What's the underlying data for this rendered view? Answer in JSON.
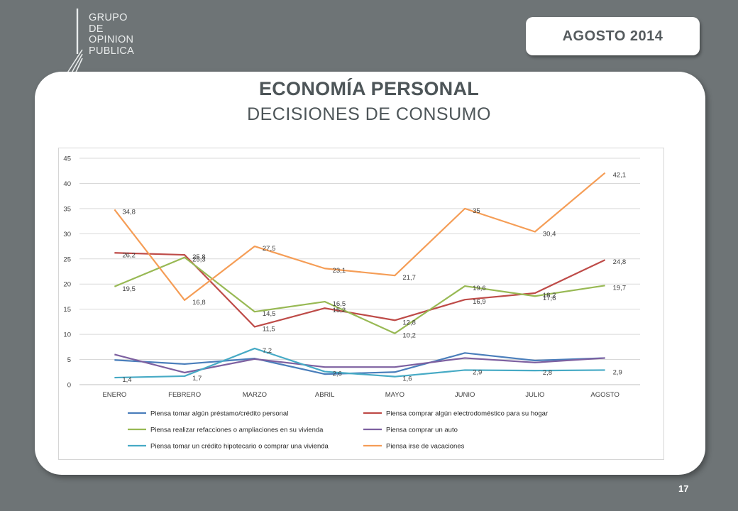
{
  "logo": {
    "lines": [
      "GRUPO",
      "DE",
      "OPINION",
      "PUBLICA"
    ]
  },
  "header": {
    "date_badge": "AGOSTO 2014"
  },
  "slide": {
    "title": "ECONOMÍA PERSONAL",
    "subtitle": "DECISIONES DE CONSUMO",
    "page_number": "17"
  },
  "chart_data": {
    "type": "line",
    "categories": [
      "ENERO",
      "FEBRERO",
      "MARZO",
      "ABRIL",
      "MAYO",
      "JUNIO",
      "JULIO",
      "AGOSTO"
    ],
    "ylim": [
      0,
      45
    ],
    "yticks": [
      0,
      5,
      10,
      15,
      20,
      25,
      30,
      35,
      40,
      45
    ],
    "grid": true,
    "legend_position": "bottom",
    "series": [
      {
        "name": "Piensa tomar algún préstamo/crédito personal",
        "color": "#4a7ebb",
        "values": [
          4.9,
          4.1,
          5.2,
          2.1,
          2.5,
          6.3,
          4.8,
          5.3
        ],
        "labels": [
          null,
          null,
          null,
          null,
          null,
          null,
          null,
          null
        ]
      },
      {
        "name": "Piensa comprar algún electrodoméstico para su hogar",
        "color": "#be4b48",
        "values": [
          26.2,
          25.8,
          11.5,
          15.2,
          12.8,
          16.9,
          18.2,
          24.8
        ],
        "labels": [
          "26,2",
          "25,8",
          "11,5",
          "15,2",
          "12,8",
          "16,9",
          "18,2",
          "24,8"
        ]
      },
      {
        "name": "Piensa realizar refacciones o ampliaciones en su vivienda",
        "color": "#98b954",
        "values": [
          19.5,
          25.3,
          14.5,
          16.5,
          10.2,
          19.6,
          17.6,
          19.7
        ],
        "labels": [
          "19,5",
          "25,3",
          "14,5",
          "16,5",
          "10,2",
          "19,6",
          "17,6",
          "19,7"
        ]
      },
      {
        "name": "Piensa comprar un auto",
        "color": "#7d60a0",
        "values": [
          6.0,
          2.4,
          5.1,
          3.5,
          3.5,
          5.3,
          4.4,
          5.3
        ],
        "labels": [
          null,
          null,
          null,
          null,
          null,
          null,
          null,
          null
        ]
      },
      {
        "name": "Piensa tomar un crédito hipotecario o comprar una vivienda",
        "color": "#46aac5",
        "values": [
          1.4,
          1.7,
          7.2,
          2.6,
          1.6,
          2.9,
          2.8,
          2.9
        ],
        "labels": [
          "1,4",
          "1,7",
          "7,2",
          "2,6",
          "1,6",
          "2,9",
          "2,8",
          "2,9"
        ]
      },
      {
        "name": "Piensa irse de vacaciones",
        "color": "#f59d56",
        "values": [
          34.8,
          16.8,
          27.5,
          23.1,
          21.7,
          35,
          30.4,
          42.1
        ],
        "labels": [
          "34,8",
          "16,8",
          "27,5",
          "23,1",
          "21,7",
          "35",
          "30,4",
          "42,1"
        ]
      }
    ]
  }
}
